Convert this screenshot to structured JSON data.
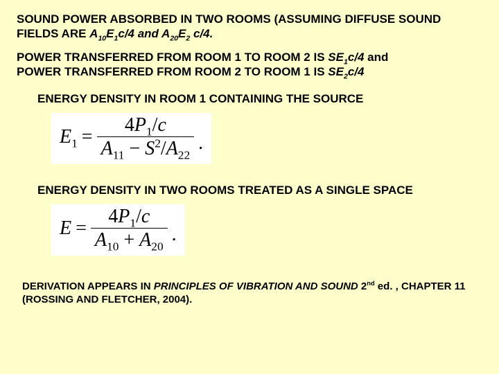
{
  "background_color": "#ffffcc",
  "text_color": "#000000",
  "equation_bg": "#ffffff",
  "font_body": "Arial",
  "font_math": "Times New Roman",
  "p1": {
    "prefix": "SOUND POWER ABSORBED IN TWO ROOMS (ASSUMING DIFFUSE SOUND FIELDS ARE  ",
    "a10": "A",
    "a10sub": "10",
    "e1": "E",
    "e1sub": "1",
    "mid1": "c/4   and   ",
    "a20": "A",
    "a20sub": "20",
    "e2": "E",
    "e2sub": "2",
    "suffix": " c/4."
  },
  "p2": {
    "l1a": "POWER TRANSFERRED FROM ROOM 1 TO ROOM 2 IS   ",
    "se1": "SE",
    "se1sub": "1",
    "l1b": "c/4 ",
    "and": "and",
    "l2a": "POWER TRANSFERRED FROM ROOM 2 TO ROOM 1 IS   ",
    "se2": "SE",
    "se2sub": "2",
    "l2b": "c/4"
  },
  "h_room1": "ENERGY DENSITY IN ROOM 1 CONTAINING THE SOURCE",
  "h_single": "ENERGY DENSITY IN TWO ROOMS TREATED AS A SINGLE SPACE",
  "eq1": {
    "lhs_var": "E",
    "lhs_sub": "1",
    "equals": " = ",
    "num_a": "4",
    "num_p": "P",
    "num_psub": "1",
    "num_b": "/",
    "num_c": "c",
    "den_a": "A",
    "den_asub": "11",
    "den_minus": " − ",
    "den_s": "S",
    "den_ssup": "2",
    "den_slash": "/",
    "den_b": "A",
    "den_bsub": "22",
    "dot": "."
  },
  "eq2": {
    "lhs_var": "E",
    "equals": " = ",
    "num_a": "4",
    "num_p": "P",
    "num_psub": "1",
    "num_b": "/",
    "num_c": "c",
    "den_a": "A",
    "den_asub": "10",
    "den_plus": " + ",
    "den_b": "A",
    "den_bsub": "20",
    "dot": "."
  },
  "footer": {
    "t1": "DERIVATION APPEARS IN ",
    "book": "PRINCIPLES OF VIBRATION AND SOUND",
    "t2": " 2",
    "nd": "nd",
    "t3": " ed. , CHAPTER 11 (ROSSING AND FLETCHER, 2004)."
  }
}
